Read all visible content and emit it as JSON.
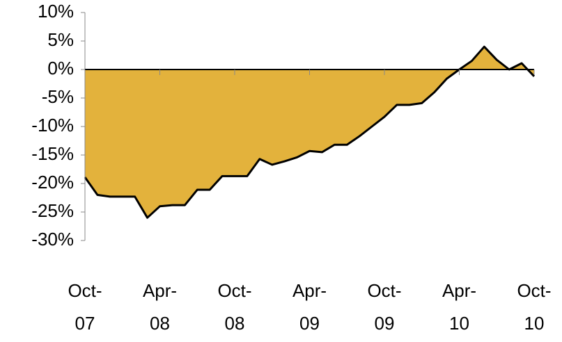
{
  "chart_data": {
    "type": "area",
    "categories": [
      "Oct-07",
      null,
      null,
      null,
      null,
      null,
      "Apr-08",
      null,
      null,
      null,
      null,
      null,
      "Oct-08",
      null,
      null,
      null,
      null,
      null,
      "Apr-09",
      null,
      null,
      null,
      null,
      null,
      "Oct-09",
      null,
      null,
      null,
      null,
      null,
      "Apr-10",
      null,
      null,
      null,
      null,
      null,
      "Oct-10"
    ],
    "series": [
      {
        "color": "#e3b23c",
        "values": [
          -18.9,
          -22,
          -22.3,
          -22.3,
          -22.3,
          -26,
          -24,
          -23.8,
          -23.8,
          -21.1,
          -21.1,
          -18.7,
          -18.7,
          -18.7,
          -15.7,
          -16.7,
          -16.1,
          -15.4,
          -14.3,
          -14.5,
          -13.2,
          -13.2,
          -11.7,
          -10,
          -8.3,
          -6.2,
          -6.2,
          -5.9,
          -4,
          -1.6,
          0,
          1.5,
          4,
          1.7,
          0,
          1.1,
          -1.2
        ]
      }
    ],
    "ylim": [
      -30,
      10
    ],
    "yticks": [
      {
        "value": 10,
        "label": "10%"
      },
      {
        "value": 5,
        "label": "5%"
      },
      {
        "value": 0,
        "label": "0%"
      },
      {
        "value": -5,
        "label": "-5%"
      },
      {
        "value": -10,
        "label": "-10%"
      },
      {
        "value": -15,
        "label": "-15%"
      },
      {
        "value": -20,
        "label": "-20%"
      },
      {
        "value": -25,
        "label": "-25%"
      },
      {
        "value": -30,
        "label": "-30%"
      }
    ]
  }
}
